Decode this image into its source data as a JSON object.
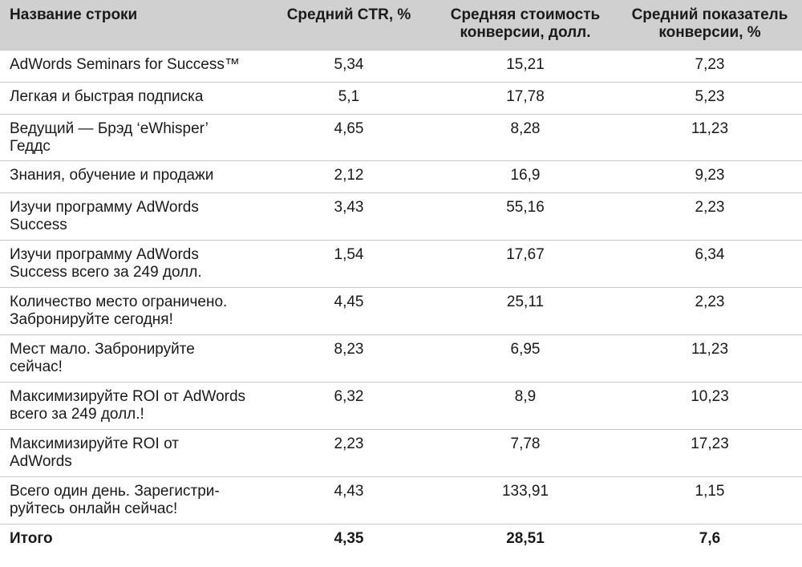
{
  "header": {
    "col1": "Название строки",
    "col2": "Средний CTR, %",
    "col3": "Средняя стоимость конверсии, долл.",
    "col4": "Средний показатель конверсии, %"
  },
  "rows": [
    {
      "name": "AdWords Seminars for Success™",
      "ctr": "5,34",
      "cost": "15,21",
      "conv": "7,23"
    },
    {
      "name": "Легкая и быстрая подписка",
      "ctr": "5,1",
      "cost": "17,78",
      "conv": "5,23"
    },
    {
      "name": "Ведущий — Брэд ‘eWhisper’ Геддс",
      "ctr": "4,65",
      "cost": "8,28",
      "conv": "11,23"
    },
    {
      "name": "Знания, обучение и продажи",
      "ctr": "2,12",
      "cost": "16,9",
      "conv": "9,23"
    },
    {
      "name": "Изучи программу AdWords Success",
      "ctr": "3,43",
      "cost": "55,16",
      "conv": "2,23"
    },
    {
      "name": "Изучи программу AdWords Success всего за 249 долл.",
      "ctr": "1,54",
      "cost": "17,67",
      "conv": "6,34"
    },
    {
      "name": "Количество место ограничено. Забронируйте сегодня!",
      "ctr": "4,45",
      "cost": "25,11",
      "conv": "2,23"
    },
    {
      "name": "Мест мало. Забронируйте сейчас!",
      "ctr": "8,23",
      "cost": "6,95",
      "conv": "11,23"
    },
    {
      "name": "Максимизируйте ROI от AdWords всего за 249 долл.!",
      "ctr": "6,32",
      "cost": "8,9",
      "conv": "10,23"
    },
    {
      "name": "Максимизируйте ROI от AdWords",
      "ctr": "2,23",
      "cost": "7,78",
      "conv": "17,23"
    },
    {
      "name": "Всего один день. Зарегистри-руйтесь онлайн сейчас!",
      "ctr": "4,43",
      "cost": "133,91",
      "conv": "1,15"
    }
  ],
  "total": {
    "name": "Итого",
    "ctr": "4,35",
    "cost": "28,51",
    "conv": "7,6"
  }
}
